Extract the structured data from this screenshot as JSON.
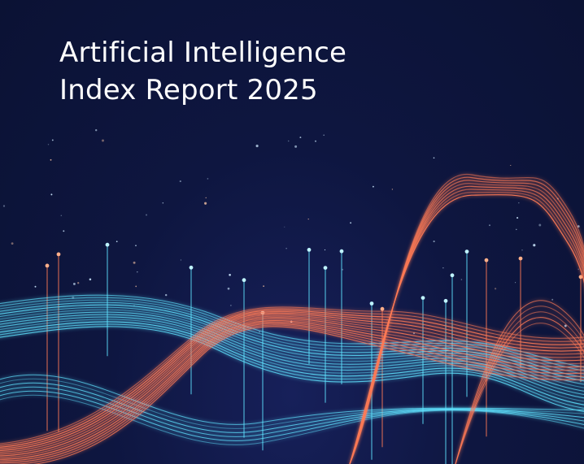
{
  "cover": {
    "title_line1": "Artificial Intelligence",
    "title_line2": "Index Report 2025"
  },
  "colors": {
    "background": "#0c1438",
    "cyan_wave": "#5fe3ff",
    "orange_wave": "#ff7a55",
    "title": "#ffffff"
  },
  "artwork": {
    "icon": "abstract-data-waves"
  }
}
